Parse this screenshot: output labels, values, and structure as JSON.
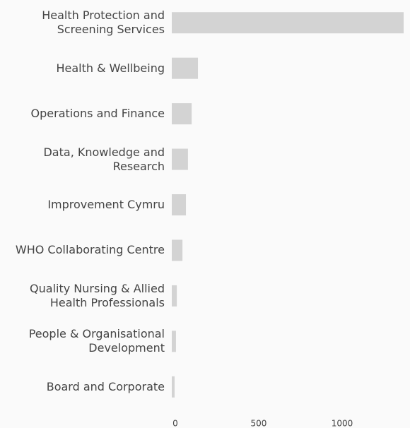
{
  "chart_data": {
    "type": "bar",
    "orientation": "horizontal",
    "categories": [
      "Health Protection and Screening Services",
      "Health & Wellbeing",
      "Operations and Finance",
      "Data, Knowledge and Research",
      "Improvement Cymru",
      "WHO Collaborating Centre",
      "Quality Nursing & Allied Health Professionals",
      "People & Organisational Development",
      "Board and Corporate"
    ],
    "values": [
      1390,
      157,
      119,
      97,
      85,
      64,
      30,
      25,
      17
    ],
    "color": "#d3d3d3",
    "xlim": [
      0,
      1390
    ],
    "xticks": [
      0,
      500,
      1000
    ]
  }
}
